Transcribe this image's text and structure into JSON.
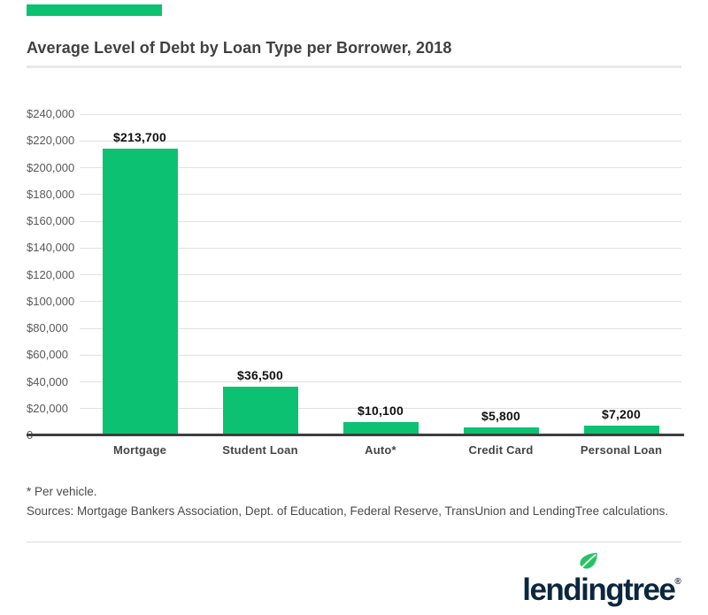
{
  "header": {
    "title": "Average Level of Debt by Loan Type per Borrower, 2018"
  },
  "colors": {
    "bar_green": "#0cc272",
    "accent_green": "#0cc272",
    "leaf_green": "#24c465",
    "logo_navy": "#0b2740"
  },
  "chart_data": {
    "type": "bar",
    "title": "Average Level of Debt by Loan Type per Borrower, 2018",
    "categories": [
      "Mortgage",
      "Student Loan",
      "Auto*",
      "Credit Card",
      "Personal Loan"
    ],
    "values": [
      213700,
      36500,
      10100,
      5800,
      7200
    ],
    "value_labels": [
      "$213,700",
      "$36,500",
      "$10,100",
      "$5,800",
      "$7,200"
    ],
    "y_tick_labels": [
      "$240,000",
      "$220,000",
      "$200,000",
      "$180,000",
      "$160,000",
      "$140,000",
      "$120,000",
      "$100,000",
      "$80,000",
      "$60,000",
      "$40,000",
      "$20,000",
      "0"
    ],
    "ylim": [
      0,
      240000
    ],
    "grid": true,
    "legend_position": "none",
    "xlabel": "",
    "ylabel": "",
    "bar_color": "#0cc272"
  },
  "footnotes": {
    "line1": "* Per vehicle.",
    "line2": "Sources: Mortgage Bankers Association, Dept. of Education, Federal Reserve, TransUnion and LendingTree calculations."
  },
  "footer": {
    "logo_text": "lendingtree",
    "registered_mark": "®"
  }
}
